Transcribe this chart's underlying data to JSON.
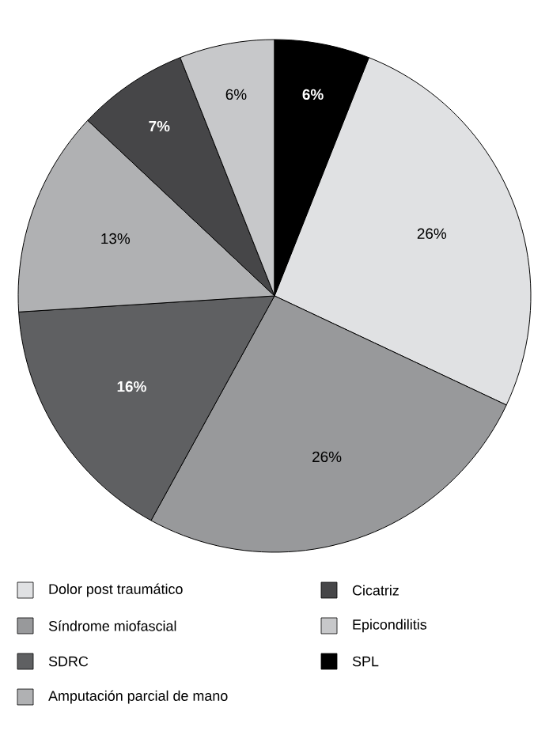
{
  "chart_data": {
    "type": "pie",
    "categories": [
      "Dolor post traumático",
      "Síndrome miofascial",
      "SDRC",
      "Amputación parcial de mano",
      "Cicatriz",
      "Epicondilitis",
      "SPL"
    ],
    "values": [
      26,
      26,
      16,
      13,
      7,
      6,
      6
    ],
    "colors": [
      "#e0e1e3",
      "#98999b",
      "#5f6062",
      "#b0b1b3",
      "#464648",
      "#c7c8ca",
      "#000000"
    ],
    "value_labels": [
      "26%",
      "26%",
      "16%",
      "13%",
      "7%",
      "6%",
      "6%"
    ],
    "legend": "bottom"
  }
}
